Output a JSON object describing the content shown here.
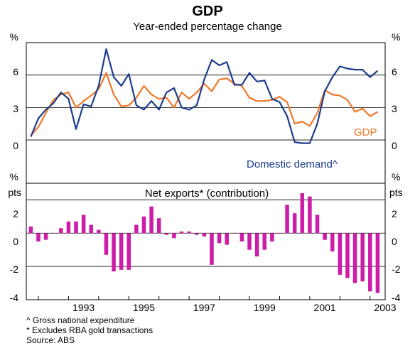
{
  "chart_data": [
    {
      "type": "line",
      "title": "GDP",
      "subtitle": "Year-ended percentage change",
      "y_unit": "%",
      "ylim": [
        -4,
        9
      ],
      "yticks": [
        0,
        3,
        6
      ],
      "grid": true,
      "series": [
        {
          "name": "GDP",
          "color": "#f07828",
          "x": [
            1991.75,
            1992.0,
            1992.25,
            1992.5,
            1992.75,
            1993.0,
            1993.25,
            1993.5,
            1993.75,
            1994.0,
            1994.25,
            1994.5,
            1994.75,
            1995.0,
            1995.25,
            1995.5,
            1995.75,
            1996.0,
            1996.25,
            1996.5,
            1996.75,
            1997.0,
            1997.25,
            1997.5,
            1997.75,
            1998.0,
            1998.25,
            1998.5,
            1998.75,
            1999.0,
            1999.25,
            1999.5,
            1999.75,
            2000.0,
            2000.25,
            2000.5,
            2000.75,
            2001.0,
            2001.25,
            2001.5,
            2001.75,
            2002.0,
            2002.25,
            2002.5,
            2002.75,
            2003.0,
            2003.25
          ],
          "values": [
            0.4,
            1.2,
            2.5,
            3.7,
            4.2,
            4.4,
            3.0,
            3.6,
            4.1,
            4.7,
            6.2,
            4.2,
            3.1,
            3.2,
            3.9,
            5.0,
            4.2,
            3.8,
            3.9,
            3.0,
            4.4,
            3.8,
            4.4,
            5.2,
            4.5,
            5.6,
            5.7,
            5.2,
            5.0,
            3.9,
            3.6,
            3.6,
            3.7,
            4.0,
            3.5,
            1.5,
            1.7,
            1.3,
            2.5,
            4.6,
            4.2,
            4.1,
            3.7,
            2.6,
            2.9,
            2.2,
            2.6
          ]
        },
        {
          "name": "Domestic demand^",
          "color": "#1c3c8c",
          "x": [
            1991.75,
            1992.0,
            1992.25,
            1992.5,
            1992.75,
            1993.0,
            1993.25,
            1993.5,
            1993.75,
            1994.0,
            1994.25,
            1994.5,
            1994.75,
            1995.0,
            1995.25,
            1995.5,
            1995.75,
            1996.0,
            1996.25,
            1996.5,
            1996.75,
            1997.0,
            1997.25,
            1997.5,
            1997.75,
            1998.0,
            1998.25,
            1998.5,
            1998.75,
            1999.0,
            1999.25,
            1999.5,
            1999.75,
            2000.0,
            2000.25,
            2000.5,
            2000.75,
            2001.0,
            2001.25,
            2001.5,
            2001.75,
            2002.0,
            2002.25,
            2002.5,
            2002.75,
            2003.0,
            2003.25
          ],
          "values": [
            0.3,
            2.0,
            2.8,
            3.4,
            4.4,
            3.8,
            1.0,
            3.3,
            3.1,
            5.0,
            8.4,
            5.8,
            5.0,
            6.1,
            3.2,
            2.8,
            3.6,
            2.8,
            4.4,
            4.8,
            3.0,
            2.8,
            3.2,
            5.6,
            7.4,
            6.9,
            7.2,
            5.1,
            5.1,
            6.2,
            5.4,
            5.5,
            3.8,
            3.5,
            2.2,
            -0.2,
            -0.3,
            -0.3,
            1.5,
            4.5,
            5.8,
            6.8,
            6.6,
            6.5,
            6.5,
            5.8,
            6.4
          ]
        }
      ],
      "annotations": [
        {
          "text": "GDP",
          "series": "GDP"
        },
        {
          "text": "Domestic demand^",
          "series": "Domestic demand^"
        }
      ]
    },
    {
      "type": "bar",
      "title": "Net exports* (contribution)",
      "y_unit": "pts",
      "ylim": [
        -4,
        3
      ],
      "yticks": [
        -4,
        -2,
        0,
        2
      ],
      "bar_color": "#cc1ca8",
      "grid": true,
      "x": [
        1991.75,
        1992.0,
        1992.25,
        1992.5,
        1992.75,
        1993.0,
        1993.25,
        1993.5,
        1993.75,
        1994.0,
        1994.25,
        1994.5,
        1994.75,
        1995.0,
        1995.25,
        1995.5,
        1995.75,
        1996.0,
        1996.25,
        1996.5,
        1996.75,
        1997.0,
        1997.25,
        1997.5,
        1997.75,
        1998.0,
        1998.25,
        1998.5,
        1998.75,
        1999.0,
        1999.25,
        1999.5,
        1999.75,
        2000.0,
        2000.25,
        2000.5,
        2000.75,
        2001.0,
        2001.25,
        2001.5,
        2001.75,
        2002.0,
        2002.25,
        2002.5,
        2002.75,
        2003.0,
        2003.25
      ],
      "values": [
        0.4,
        -0.5,
        -0.4,
        0.0,
        0.3,
        0.7,
        0.7,
        1.1,
        0.5,
        0.2,
        -1.3,
        -2.3,
        -2.2,
        -2.2,
        0.5,
        1.0,
        1.6,
        0.9,
        -0.1,
        -0.3,
        0.1,
        0.1,
        -0.1,
        -0.2,
        -1.9,
        -0.6,
        -0.7,
        0.0,
        -0.5,
        -1.0,
        -1.4,
        -1.0,
        -0.5,
        0.0,
        1.7,
        1.2,
        2.4,
        2.2,
        1.1,
        -0.4,
        -1.1,
        -2.5,
        -2.7,
        -3.0,
        -2.9,
        -3.5,
        -3.6
      ]
    }
  ],
  "x_axis": {
    "range": [
      1991.6,
      2003.5
    ],
    "tick_labels": [
      "1993",
      "1995",
      "1997",
      "1999",
      "2001",
      "2003"
    ],
    "tick_years": [
      1993,
      1995,
      1997,
      1999,
      2001,
      2003
    ]
  },
  "left_tick_labels_top": [
    "%",
    "6",
    "3",
    "0",
    "%"
  ],
  "right_tick_labels_top": [
    "%",
    "6",
    "3",
    "0",
    "%"
  ],
  "left_tick_labels_bottom": [
    "pts",
    "2",
    "0",
    "-2",
    "-4"
  ],
  "right_tick_labels_bottom": [
    "pts",
    "2",
    "0",
    "-2",
    "-4"
  ],
  "footnotes": [
    "^ Gross national expenditure",
    "* Excludes RBA gold transactions",
    "Source: ABS"
  ]
}
